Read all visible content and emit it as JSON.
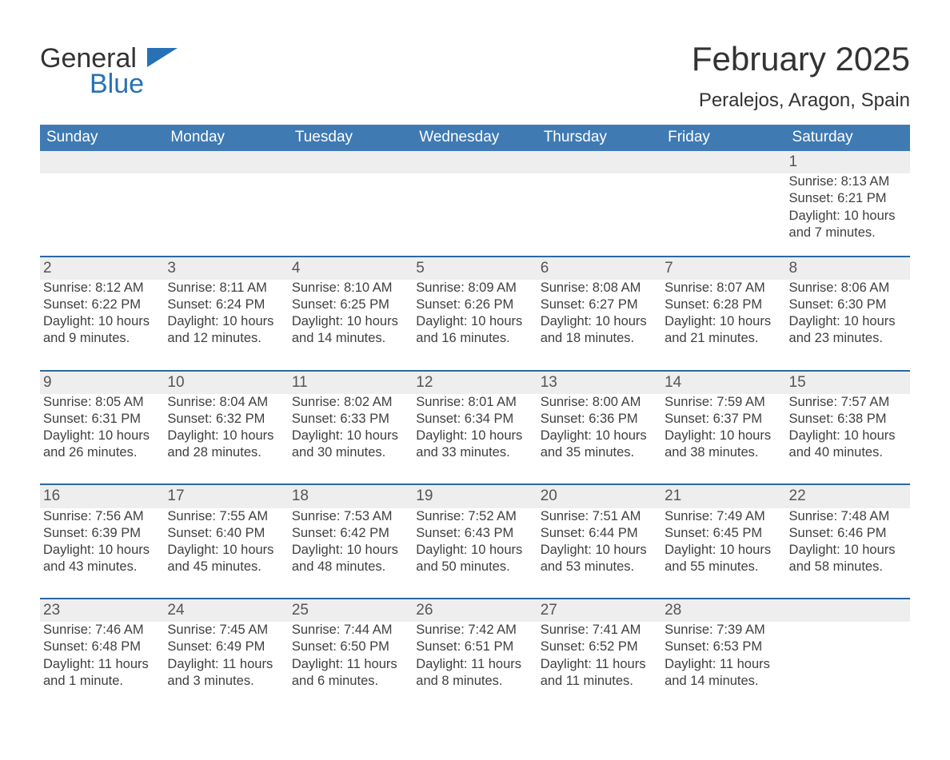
{
  "logo": {
    "word1": "General",
    "word2": "Blue",
    "flag_color": "#2871b6"
  },
  "header": {
    "month_title": "February 2025",
    "location": "Peralejos, Aragon, Spain"
  },
  "colors": {
    "header_bg": "#3f7ab3",
    "accent_border": "#2b68a3",
    "date_bg": "#eeeeee",
    "text": "#404040"
  },
  "weekdays": [
    "Sunday",
    "Monday",
    "Tuesday",
    "Wednesday",
    "Thursday",
    "Friday",
    "Saturday"
  ],
  "weeks": [
    [
      null,
      null,
      null,
      null,
      null,
      null,
      {
        "d": "1",
        "sr": "Sunrise: 8:13 AM",
        "ss": "Sunset: 6:21 PM",
        "dl": "Daylight: 10 hours and 7 minutes."
      }
    ],
    [
      {
        "d": "2",
        "sr": "Sunrise: 8:12 AM",
        "ss": "Sunset: 6:22 PM",
        "dl": "Daylight: 10 hours and 9 minutes."
      },
      {
        "d": "3",
        "sr": "Sunrise: 8:11 AM",
        "ss": "Sunset: 6:24 PM",
        "dl": "Daylight: 10 hours and 12 minutes."
      },
      {
        "d": "4",
        "sr": "Sunrise: 8:10 AM",
        "ss": "Sunset: 6:25 PM",
        "dl": "Daylight: 10 hours and 14 minutes."
      },
      {
        "d": "5",
        "sr": "Sunrise: 8:09 AM",
        "ss": "Sunset: 6:26 PM",
        "dl": "Daylight: 10 hours and 16 minutes."
      },
      {
        "d": "6",
        "sr": "Sunrise: 8:08 AM",
        "ss": "Sunset: 6:27 PM",
        "dl": "Daylight: 10 hours and 18 minutes."
      },
      {
        "d": "7",
        "sr": "Sunrise: 8:07 AM",
        "ss": "Sunset: 6:28 PM",
        "dl": "Daylight: 10 hours and 21 minutes."
      },
      {
        "d": "8",
        "sr": "Sunrise: 8:06 AM",
        "ss": "Sunset: 6:30 PM",
        "dl": "Daylight: 10 hours and 23 minutes."
      }
    ],
    [
      {
        "d": "9",
        "sr": "Sunrise: 8:05 AM",
        "ss": "Sunset: 6:31 PM",
        "dl": "Daylight: 10 hours and 26 minutes."
      },
      {
        "d": "10",
        "sr": "Sunrise: 8:04 AM",
        "ss": "Sunset: 6:32 PM",
        "dl": "Daylight: 10 hours and 28 minutes."
      },
      {
        "d": "11",
        "sr": "Sunrise: 8:02 AM",
        "ss": "Sunset: 6:33 PM",
        "dl": "Daylight: 10 hours and 30 minutes."
      },
      {
        "d": "12",
        "sr": "Sunrise: 8:01 AM",
        "ss": "Sunset: 6:34 PM",
        "dl": "Daylight: 10 hours and 33 minutes."
      },
      {
        "d": "13",
        "sr": "Sunrise: 8:00 AM",
        "ss": "Sunset: 6:36 PM",
        "dl": "Daylight: 10 hours and 35 minutes."
      },
      {
        "d": "14",
        "sr": "Sunrise: 7:59 AM",
        "ss": "Sunset: 6:37 PM",
        "dl": "Daylight: 10 hours and 38 minutes."
      },
      {
        "d": "15",
        "sr": "Sunrise: 7:57 AM",
        "ss": "Sunset: 6:38 PM",
        "dl": "Daylight: 10 hours and 40 minutes."
      }
    ],
    [
      {
        "d": "16",
        "sr": "Sunrise: 7:56 AM",
        "ss": "Sunset: 6:39 PM",
        "dl": "Daylight: 10 hours and 43 minutes."
      },
      {
        "d": "17",
        "sr": "Sunrise: 7:55 AM",
        "ss": "Sunset: 6:40 PM",
        "dl": "Daylight: 10 hours and 45 minutes."
      },
      {
        "d": "18",
        "sr": "Sunrise: 7:53 AM",
        "ss": "Sunset: 6:42 PM",
        "dl": "Daylight: 10 hours and 48 minutes."
      },
      {
        "d": "19",
        "sr": "Sunrise: 7:52 AM",
        "ss": "Sunset: 6:43 PM",
        "dl": "Daylight: 10 hours and 50 minutes."
      },
      {
        "d": "20",
        "sr": "Sunrise: 7:51 AM",
        "ss": "Sunset: 6:44 PM",
        "dl": "Daylight: 10 hours and 53 minutes."
      },
      {
        "d": "21",
        "sr": "Sunrise: 7:49 AM",
        "ss": "Sunset: 6:45 PM",
        "dl": "Daylight: 10 hours and 55 minutes."
      },
      {
        "d": "22",
        "sr": "Sunrise: 7:48 AM",
        "ss": "Sunset: 6:46 PM",
        "dl": "Daylight: 10 hours and 58 minutes."
      }
    ],
    [
      {
        "d": "23",
        "sr": "Sunrise: 7:46 AM",
        "ss": "Sunset: 6:48 PM",
        "dl": "Daylight: 11 hours and 1 minute."
      },
      {
        "d": "24",
        "sr": "Sunrise: 7:45 AM",
        "ss": "Sunset: 6:49 PM",
        "dl": "Daylight: 11 hours and 3 minutes."
      },
      {
        "d": "25",
        "sr": "Sunrise: 7:44 AM",
        "ss": "Sunset: 6:50 PM",
        "dl": "Daylight: 11 hours and 6 minutes."
      },
      {
        "d": "26",
        "sr": "Sunrise: 7:42 AM",
        "ss": "Sunset: 6:51 PM",
        "dl": "Daylight: 11 hours and 8 minutes."
      },
      {
        "d": "27",
        "sr": "Sunrise: 7:41 AM",
        "ss": "Sunset: 6:52 PM",
        "dl": "Daylight: 11 hours and 11 minutes."
      },
      {
        "d": "28",
        "sr": "Sunrise: 7:39 AM",
        "ss": "Sunset: 6:53 PM",
        "dl": "Daylight: 11 hours and 14 minutes."
      },
      null
    ]
  ]
}
